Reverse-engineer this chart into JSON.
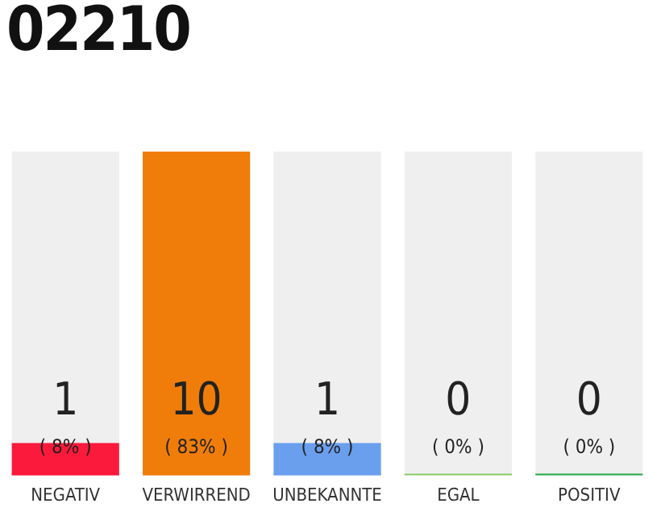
{
  "chart_data": {
    "type": "bar",
    "title": "02210",
    "categories": [
      "NEGATIV",
      "VERWIRREND",
      "UNBEKANNTE",
      "EGAL",
      "POSITIV"
    ],
    "values": [
      1,
      10,
      1,
      0,
      0
    ],
    "colors": [
      "#fc1a3c",
      "#f07d0a",
      "#6a9fee",
      "#88cc66",
      "#22aa44"
    ],
    "value_labels": [
      "1\n( 8% )",
      "10\n( 83% )",
      "1\n( 8% )",
      "0\n( 0% )",
      "0\n( 0% )"
    ],
    "tick_labels": "x",
    "grid": false,
    "legend": false
  }
}
